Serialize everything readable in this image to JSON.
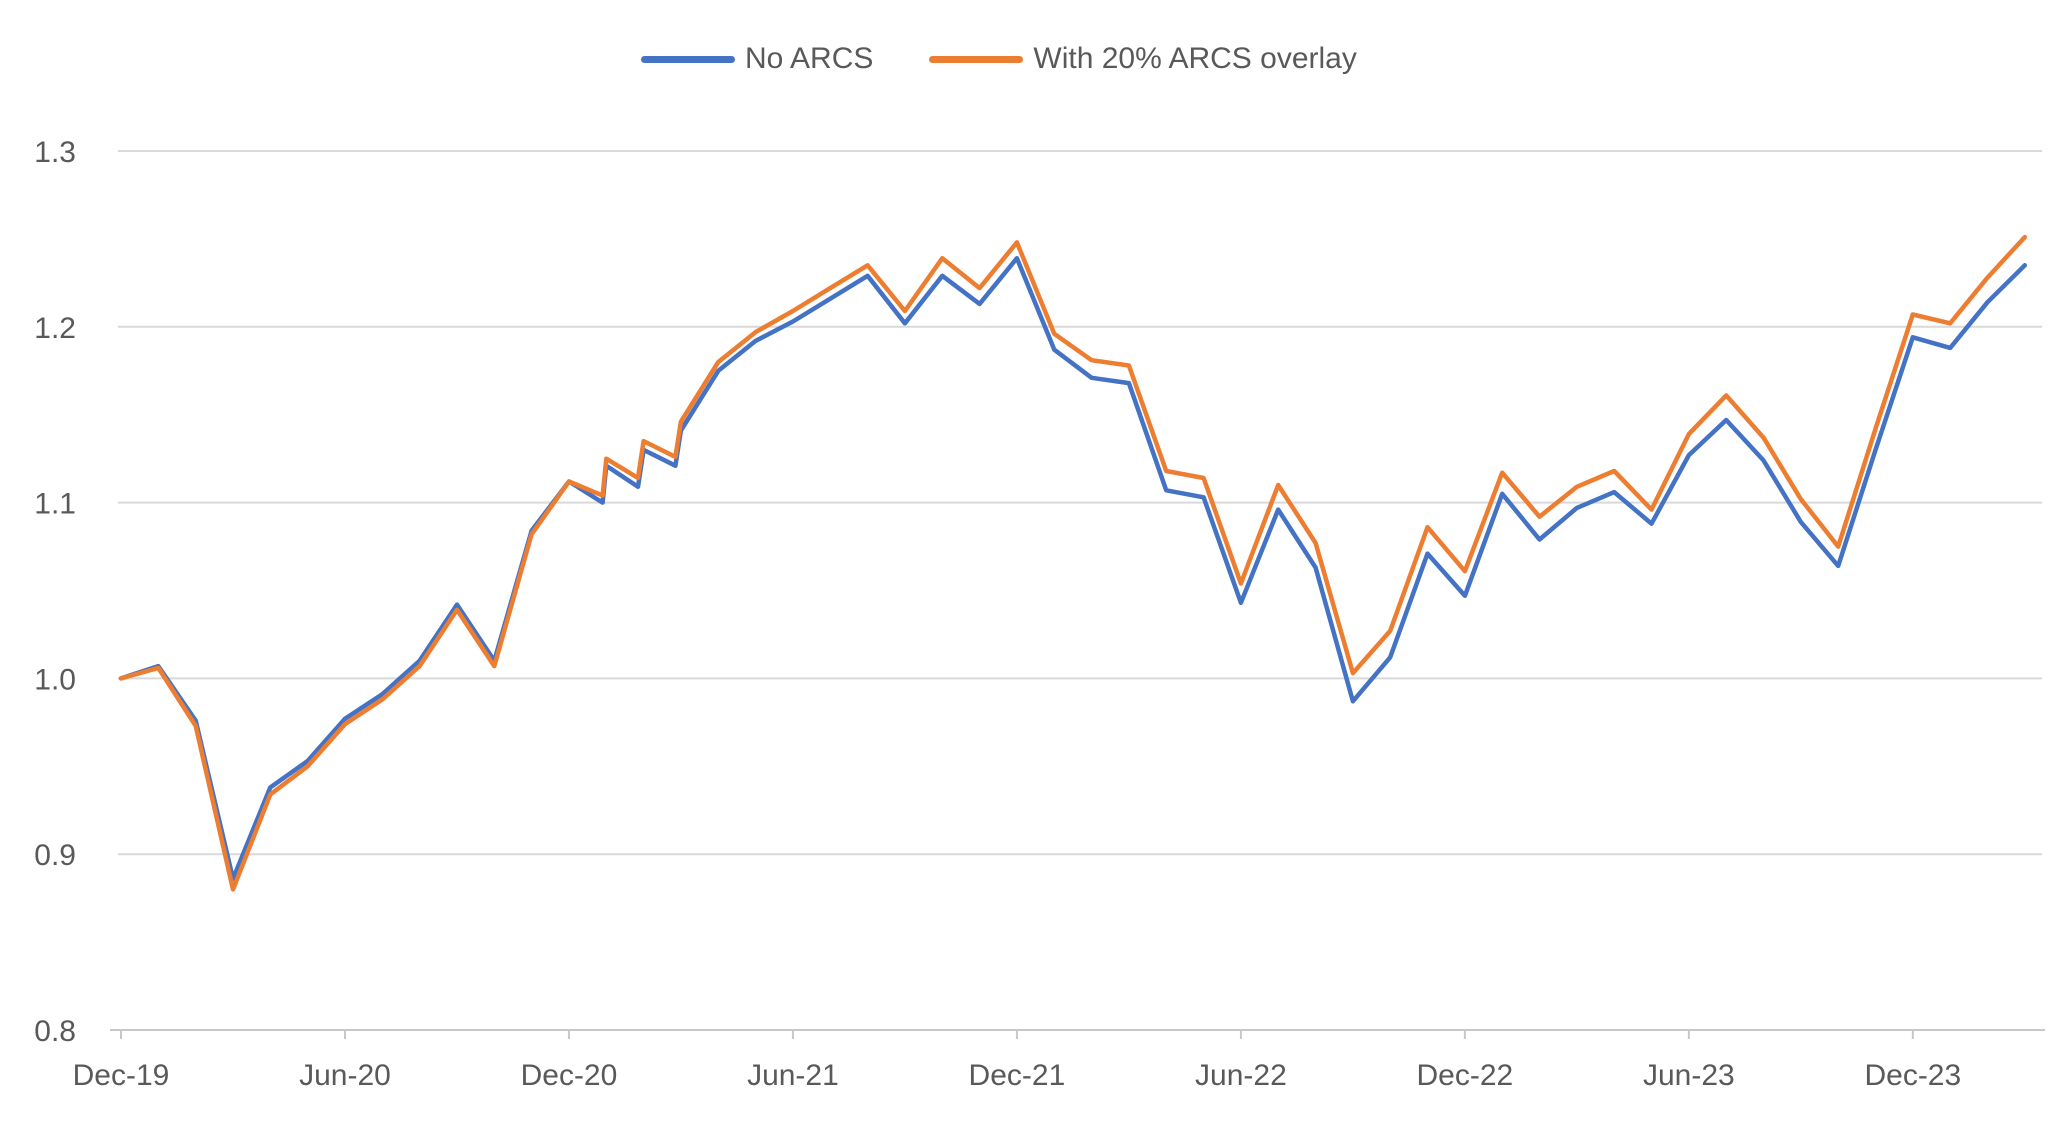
{
  "legend": [
    {
      "label": "No ARCS",
      "color": "#4472C4"
    },
    {
      "label": "With 20% ARCS overlay",
      "color": "#ED7D31"
    }
  ],
  "axis_style": {
    "text_color": "#595959",
    "grid_color": "#D9D9D9",
    "axis_color": "#C8C8C8"
  },
  "chart_data": {
    "type": "line",
    "title": "",
    "xlabel": "",
    "ylabel": "",
    "x_unit": "months since Dec-2019",
    "xlim": [
      0,
      51
    ],
    "ylim": [
      0.8,
      1.3
    ],
    "grid": true,
    "legend_position": "top-center",
    "y_ticks": [
      0.8,
      0.9,
      1.0,
      1.1,
      1.2,
      1.3
    ],
    "x_tick_labels": [
      "Dec-19",
      "Jun-20",
      "Dec-20",
      "Jun-21",
      "Dec-21",
      "Jun-22",
      "Dec-22",
      "Jun-23",
      "Dec-23"
    ],
    "x_tick_positions": [
      0,
      6,
      12,
      18,
      24,
      30,
      36,
      42,
      48
    ],
    "series": [
      {
        "name": "No ARCS",
        "color": "#4472C4",
        "points": [
          [
            0,
            1.0
          ],
          [
            1,
            1.007
          ],
          [
            2,
            0.976
          ],
          [
            3,
            0.886
          ],
          [
            4,
            0.938
          ],
          [
            5,
            0.953
          ],
          [
            6,
            0.977
          ],
          [
            7,
            0.991
          ],
          [
            8,
            1.01
          ],
          [
            9,
            1.042
          ],
          [
            10,
            1.01
          ],
          [
            11,
            1.084
          ],
          [
            12,
            1.112
          ],
          [
            12.9,
            1.1
          ],
          [
            13,
            1.121
          ],
          [
            13.85,
            1.109
          ],
          [
            14,
            1.13
          ],
          [
            14.85,
            1.121
          ],
          [
            15,
            1.141
          ],
          [
            16,
            1.175
          ],
          [
            17,
            1.192
          ],
          [
            18,
            1.203
          ],
          [
            19,
            1.216
          ],
          [
            20,
            1.229
          ],
          [
            21,
            1.202
          ],
          [
            22,
            1.229
          ],
          [
            23,
            1.213
          ],
          [
            24,
            1.239
          ],
          [
            25,
            1.187
          ],
          [
            26,
            1.171
          ],
          [
            27,
            1.168
          ],
          [
            28,
            1.107
          ],
          [
            29,
            1.103
          ],
          [
            30,
            1.043
          ],
          [
            31,
            1.096
          ],
          [
            32,
            1.063
          ],
          [
            33,
            0.987
          ],
          [
            34,
            1.012
          ],
          [
            35,
            1.071
          ],
          [
            36,
            1.047
          ],
          [
            37,
            1.105
          ],
          [
            38,
            1.079
          ],
          [
            39,
            1.097
          ],
          [
            40,
            1.106
          ],
          [
            41,
            1.088
          ],
          [
            42,
            1.127
          ],
          [
            43,
            1.147
          ],
          [
            44,
            1.124
          ],
          [
            45,
            1.089
          ],
          [
            46,
            1.064
          ],
          [
            47,
            1.13
          ],
          [
            48,
            1.194
          ],
          [
            49,
            1.188
          ],
          [
            50,
            1.214
          ],
          [
            51,
            1.235
          ]
        ]
      },
      {
        "name": "With 20% ARCS overlay",
        "color": "#ED7D31",
        "points": [
          [
            0,
            1.0
          ],
          [
            1,
            1.006
          ],
          [
            2,
            0.973
          ],
          [
            3,
            0.88
          ],
          [
            4,
            0.934
          ],
          [
            5,
            0.95
          ],
          [
            6,
            0.974
          ],
          [
            7,
            0.988
          ],
          [
            8,
            1.007
          ],
          [
            9,
            1.039
          ],
          [
            10,
            1.007
          ],
          [
            11,
            1.082
          ],
          [
            12,
            1.112
          ],
          [
            12.9,
            1.104
          ],
          [
            13,
            1.125
          ],
          [
            13.85,
            1.114
          ],
          [
            14,
            1.135
          ],
          [
            14.85,
            1.126
          ],
          [
            15,
            1.146
          ],
          [
            16,
            1.18
          ],
          [
            17,
            1.197
          ],
          [
            18,
            1.209
          ],
          [
            19,
            1.222
          ],
          [
            20,
            1.235
          ],
          [
            21,
            1.209
          ],
          [
            22,
            1.239
          ],
          [
            23,
            1.222
          ],
          [
            24,
            1.248
          ],
          [
            25,
            1.196
          ],
          [
            26,
            1.181
          ],
          [
            27,
            1.178
          ],
          [
            28,
            1.118
          ],
          [
            29,
            1.114
          ],
          [
            30,
            1.054
          ],
          [
            31,
            1.11
          ],
          [
            32,
            1.077
          ],
          [
            33,
            1.003
          ],
          [
            34,
            1.027
          ],
          [
            35,
            1.086
          ],
          [
            36,
            1.061
          ],
          [
            37,
            1.117
          ],
          [
            38,
            1.092
          ],
          [
            39,
            1.109
          ],
          [
            40,
            1.118
          ],
          [
            41,
            1.096
          ],
          [
            42,
            1.139
          ],
          [
            43,
            1.161
          ],
          [
            44,
            1.137
          ],
          [
            45,
            1.102
          ],
          [
            46,
            1.075
          ],
          [
            47,
            1.142
          ],
          [
            48,
            1.207
          ],
          [
            49,
            1.202
          ],
          [
            50,
            1.228
          ],
          [
            51,
            1.251
          ]
        ]
      }
    ]
  }
}
